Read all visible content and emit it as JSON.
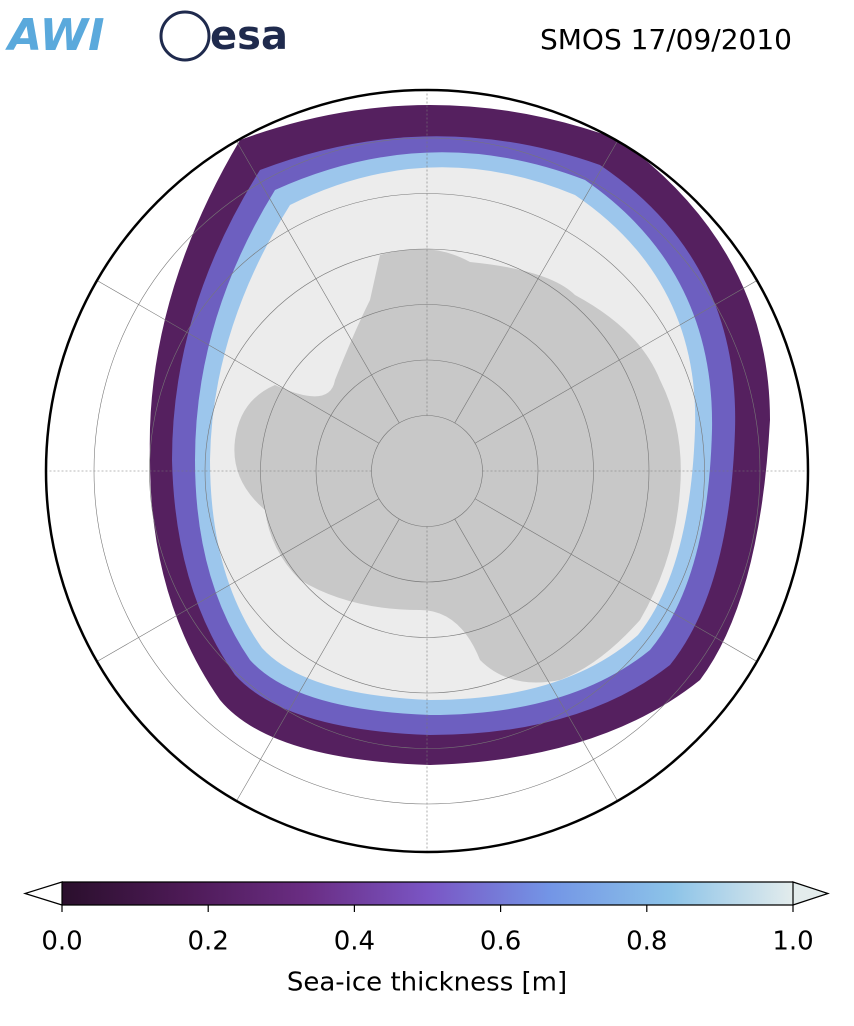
{
  "header": {
    "logos": [
      "AWI",
      "esa"
    ],
    "title": "SMOS 17/09/2010"
  },
  "colorbar": {
    "label": "Sea-ice thickness [m]",
    "xlim": [
      0,
      1
    ],
    "xticks": [
      {
        "value": 0,
        "label": "0.0"
      },
      {
        "value": 0.2,
        "label": "0.2"
      },
      {
        "value": 0.4,
        "label": "0.4"
      },
      {
        "value": 0.6,
        "label": "0.6"
      },
      {
        "value": 0.8,
        "label": "0.8"
      },
      {
        "value": 1,
        "label": "1.0"
      }
    ],
    "colors": [
      "#2a0f2c",
      "#4d1a56",
      "#6a2d83",
      "#7a55c4",
      "#7395e6",
      "#8cc3e8",
      "#e3ecec"
    ]
  }
}
